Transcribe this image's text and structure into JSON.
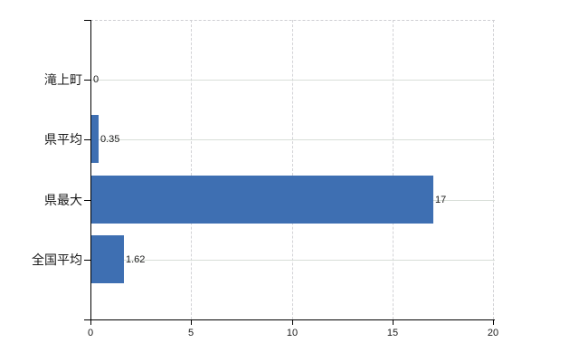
{
  "chart_data": {
    "type": "bar",
    "orientation": "horizontal",
    "categories": [
      "滝上町",
      "県平均",
      "県最大",
      "全国平均"
    ],
    "values": [
      0,
      0.35,
      17,
      1.62
    ],
    "value_labels": [
      "0",
      "0.35",
      "17",
      "1.62"
    ],
    "x_tick_labels": [
      "0",
      "5",
      "10",
      "15",
      "20"
    ],
    "x_tick_values": [
      0,
      5,
      10,
      15,
      20
    ],
    "xlim": [
      0,
      20
    ],
    "grid": true,
    "legend": false,
    "colors": {
      "bar": "#3e6fb2",
      "h_gridline": "#d8ded8",
      "v_gridline": "#d2d2d6",
      "axis": "#000000",
      "text": "#1a1a1a",
      "background": "#ffffff"
    }
  }
}
